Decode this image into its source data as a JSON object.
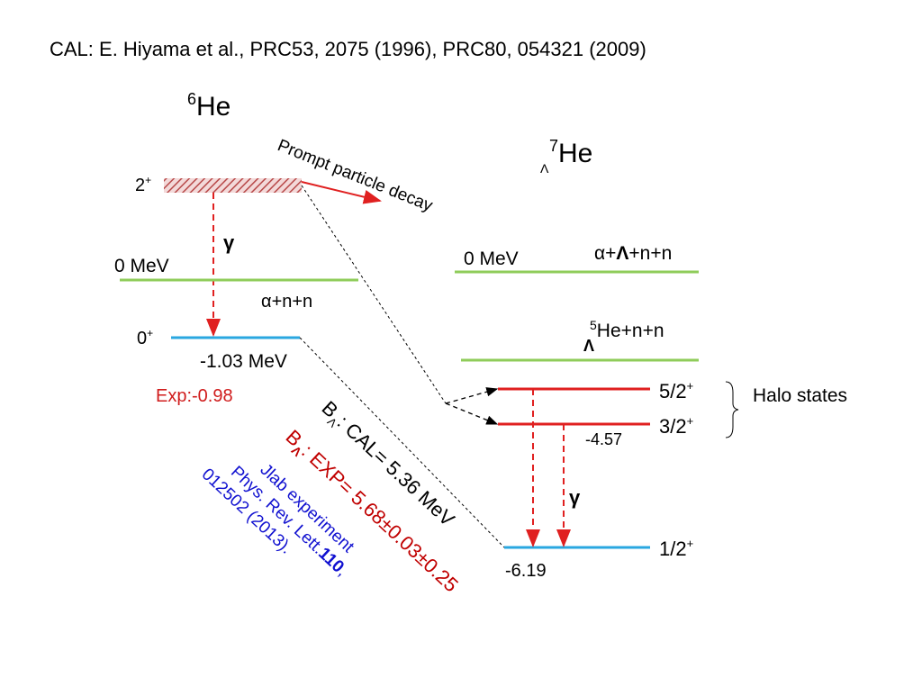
{
  "reference": "CAL:  E. Hiyama et al., PRC53, 2075 (1996), PRC80, 054321 (2009)",
  "he6": {
    "mass": "6",
    "symbol": "He",
    "excited_state": {
      "spin": "2",
      "parity": "+"
    },
    "gamma": "γ",
    "threshold": "0 MeV",
    "channel": "α+n+n",
    "ground_state": {
      "spin": "0",
      "parity": "+"
    },
    "ground_energy": "-1.03 MeV",
    "exp": "Exp:-0.98"
  },
  "decay": "Prompt particle decay",
  "he7": {
    "mass": "7",
    "sub": "Λ",
    "symbol": "He",
    "threshold": "0 MeV",
    "channel_1": {
      "a": "α+",
      "lambda": "Λ",
      "b": "+n+n"
    },
    "channel_2": {
      "mass": "5",
      "sub": "Λ",
      "rest": "He+n+n"
    },
    "states": [
      {
        "spin": "5/2",
        "parity": "+"
      },
      {
        "spin": "3/2",
        "parity": "+",
        "energy": "-4.57"
      },
      {
        "spin": "1/2",
        "parity": "+",
        "energy": "-6.19"
      }
    ],
    "halo": "Halo states",
    "gamma": "γ"
  },
  "binding": {
    "cal": {
      "b": "B",
      "sub": "Λ",
      "rest": ": CAL= 5.36 MeV"
    },
    "exp": {
      "b": "B",
      "sub": "Λ",
      "rest": ":  EXP= 5.68±0.03±0.25"
    },
    "jlab": {
      "line1": "Jlab experiment",
      "line2": "Phys. Rev. Lett.",
      "volume": "110",
      "comma": ",",
      "line3": "012502  (2013)."
    }
  }
}
